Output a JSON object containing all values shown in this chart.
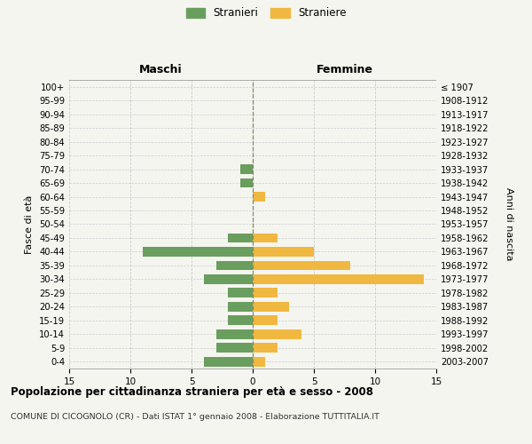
{
  "age_groups": [
    "0-4",
    "5-9",
    "10-14",
    "15-19",
    "20-24",
    "25-29",
    "30-34",
    "35-39",
    "40-44",
    "45-49",
    "50-54",
    "55-59",
    "60-64",
    "65-69",
    "70-74",
    "75-79",
    "80-84",
    "85-89",
    "90-94",
    "95-99",
    "100+"
  ],
  "birth_years": [
    "2003-2007",
    "1998-2002",
    "1993-1997",
    "1988-1992",
    "1983-1987",
    "1978-1982",
    "1973-1977",
    "1968-1972",
    "1963-1967",
    "1958-1962",
    "1953-1957",
    "1948-1952",
    "1943-1947",
    "1938-1942",
    "1933-1937",
    "1928-1932",
    "1923-1927",
    "1918-1922",
    "1913-1917",
    "1908-1912",
    "≤ 1907"
  ],
  "maschi": [
    4,
    3,
    3,
    2,
    2,
    2,
    4,
    3,
    9,
    2,
    0,
    0,
    0,
    1,
    1,
    0,
    0,
    0,
    0,
    0,
    0
  ],
  "femmine": [
    1,
    2,
    4,
    2,
    3,
    2,
    14,
    8,
    5,
    2,
    0,
    0,
    1,
    0,
    0,
    0,
    0,
    0,
    0,
    0,
    0
  ],
  "maschi_color": "#6a9e5e",
  "femmine_color": "#f0b840",
  "background_color": "#f5f5f0",
  "grid_color": "#cccccc",
  "xlim": 15,
  "title": "Popolazione per cittadinanza straniera per età e sesso - 2008",
  "subtitle": "COMUNE DI CICOGNOLO (CR) - Dati ISTAT 1° gennaio 2008 - Elaborazione TUTTITALIA.IT",
  "ylabel_left": "Fasce di età",
  "ylabel_right": "Anni di nascita",
  "header_left": "Maschi",
  "header_right": "Femmine",
  "legend_stranieri": "Stranieri",
  "legend_straniere": "Straniere",
  "xtick_labels": [
    "15",
    "10",
    "5",
    "0",
    "5",
    "10",
    "15"
  ]
}
